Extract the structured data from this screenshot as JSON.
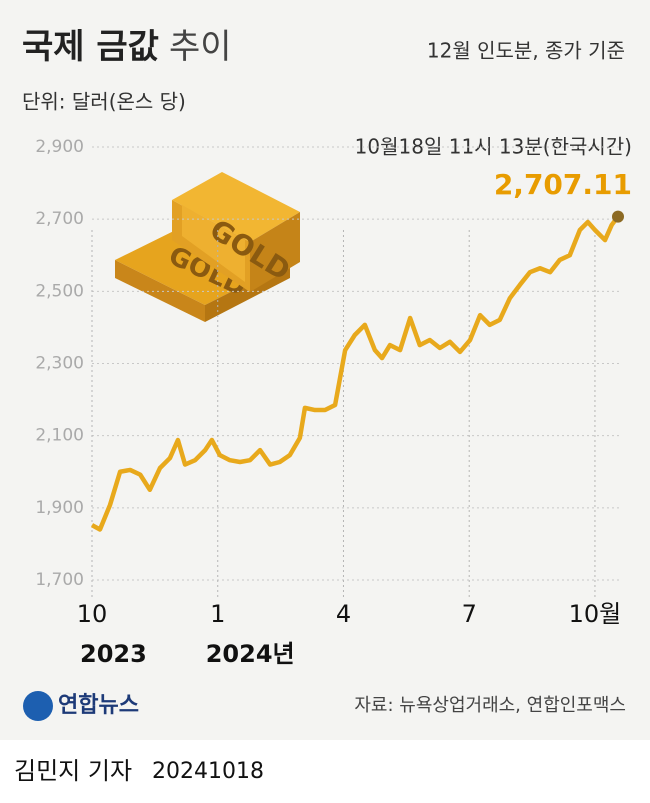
{
  "chart_data": {
    "type": "line",
    "title": "국제 금값",
    "title_suffix": "추이",
    "subtitle": "12월 인도분, 종가 기준",
    "unit_label": "단위: 달러(온스 당)",
    "annotation": "10월18일 11시 13분(한국시간)",
    "end_label": {
      "value": 2707.11,
      "label": "2,707.11"
    },
    "illustration_text": "GOLD",
    "source": "자료: 뉴욕상업거래소, 연합인포맥스",
    "logo": "연합뉴스",
    "reporter": "김민지 기자",
    "date": "20241018",
    "xlim": [
      0,
      12.55
    ],
    "xticks": [
      {
        "value": 0,
        "label": "10"
      },
      {
        "value": 3,
        "label": "1"
      },
      {
        "value": 6,
        "label": "4"
      },
      {
        "value": 9,
        "label": "7"
      },
      {
        "value": 12,
        "label": "10월"
      }
    ],
    "year_labels": [
      {
        "value": 0,
        "label": "2023"
      },
      {
        "value": 3,
        "label": "2024년"
      }
    ],
    "ylim": [
      1700,
      2900
    ],
    "yticks": [
      {
        "value": 1700,
        "label": "1,700"
      },
      {
        "value": 1900,
        "label": "1,900"
      },
      {
        "value": 2100,
        "label": "2,100"
      },
      {
        "value": 2300,
        "label": "2,300"
      },
      {
        "value": 2500,
        "label": "2,500"
      },
      {
        "value": 2700,
        "label": "2,700"
      },
      {
        "value": 2900,
        "label": "2,900"
      }
    ],
    "grid": true,
    "series": [
      {
        "color": "#e8a91c",
        "x": [
          0,
          0.19,
          0.43,
          0.67,
          0.91,
          1.15,
          1.38,
          1.62,
          1.86,
          2.05,
          2.22,
          2.46,
          2.7,
          2.86,
          3.05,
          3.29,
          3.53,
          3.77,
          4.01,
          4.25,
          4.48,
          4.72,
          4.96,
          5.08,
          5.32,
          5.56,
          5.8,
          6.04,
          6.27,
          6.51,
          6.75,
          6.92,
          7.11,
          7.35,
          7.59,
          7.82,
          8.06,
          8.3,
          8.54,
          8.78,
          9.02,
          9.26,
          9.49,
          9.73,
          9.97,
          10.21,
          10.45,
          10.69,
          10.93,
          11.16,
          11.4,
          11.64,
          11.83,
          12.0,
          12.24,
          12.4,
          12.55
        ],
        "values": [
          1852,
          1840,
          1908,
          2000,
          2005,
          1992,
          1950,
          2010,
          2038,
          2088,
          2020,
          2032,
          2060,
          2088,
          2046,
          2032,
          2027,
          2032,
          2060,
          2020,
          2027,
          2046,
          2094,
          2177,
          2171,
          2171,
          2185,
          2337,
          2379,
          2407,
          2337,
          2315,
          2351,
          2337,
          2426,
          2351,
          2365,
          2343,
          2360,
          2332,
          2365,
          2434,
          2407,
          2421,
          2481,
          2518,
          2553,
          2564,
          2553,
          2587,
          2600,
          2670,
          2692,
          2670,
          2642,
          2684,
          2707.11
        ]
      }
    ]
  }
}
